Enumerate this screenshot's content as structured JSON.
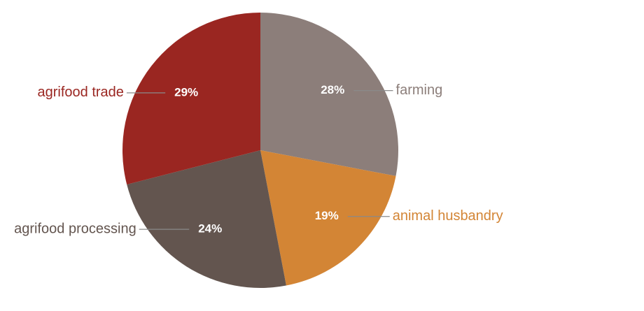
{
  "chart_data": {
    "type": "pie",
    "categories": [
      "farming",
      "animal husbandry",
      "agrifood processing",
      "agrifood trade"
    ],
    "values": [
      28,
      19,
      24,
      29
    ],
    "value_labels": [
      "28%",
      "19%",
      "24%",
      "29%"
    ],
    "colors": [
      "#8c7e7a",
      "#d38535",
      "#63554f",
      "#9a2621"
    ]
  }
}
